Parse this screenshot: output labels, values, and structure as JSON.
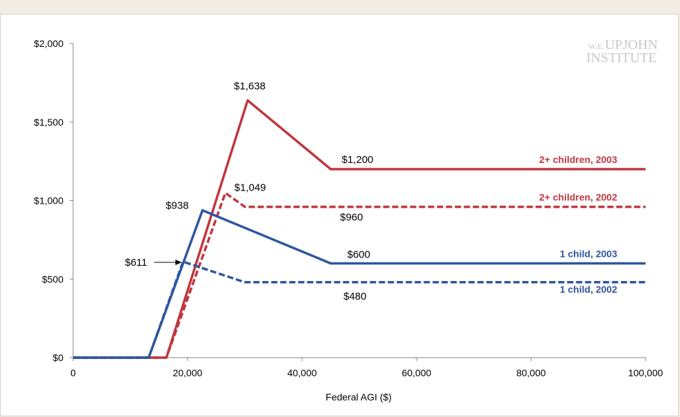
{
  "watermark": {
    "prefix": "W.E.",
    "line1": "UPJOHN",
    "line2": "INSTITUTE"
  },
  "chart_data": {
    "type": "line",
    "xlabel": "Federal AGI ($)",
    "ylabel": "",
    "xlim": [
      0,
      100000
    ],
    "ylim": [
      0,
      2000
    ],
    "x_ticks": [
      0,
      20000,
      40000,
      60000,
      80000,
      100000
    ],
    "x_tick_labels": [
      "0",
      "20,000",
      "40,000",
      "60,000",
      "80,000",
      "100,000"
    ],
    "y_ticks": [
      0,
      500,
      1000,
      1500,
      2000
    ],
    "y_tick_labels": [
      "$0",
      "$500",
      "$1,000",
      "$1,500",
      "$2,000"
    ],
    "series": [
      {
        "name": "2+ children, 2003",
        "color": "#c0373f",
        "dash": false,
        "points": [
          [
            0,
            0
          ],
          [
            16300,
            0
          ],
          [
            30500,
            1638
          ],
          [
            45000,
            1200
          ],
          [
            100000,
            1200
          ]
        ]
      },
      {
        "name": "2+ children, 2002",
        "color": "#c0373f",
        "dash": true,
        "points": [
          [
            0,
            0
          ],
          [
            16300,
            0
          ],
          [
            26600,
            1049
          ],
          [
            30000,
            960
          ],
          [
            100000,
            960
          ]
        ]
      },
      {
        "name": "1 child, 2003",
        "color": "#2f56a0",
        "dash": false,
        "points": [
          [
            0,
            0
          ],
          [
            13200,
            0
          ],
          [
            22600,
            938
          ],
          [
            45000,
            600
          ],
          [
            100000,
            600
          ]
        ]
      },
      {
        "name": "1 child, 2002",
        "color": "#2f56a0",
        "dash": true,
        "points": [
          [
            0,
            0
          ],
          [
            13200,
            0
          ],
          [
            19200,
            611
          ],
          [
            30000,
            480
          ],
          [
            100000,
            480
          ]
        ]
      }
    ],
    "annotations": [
      {
        "text": "$1,638",
        "x": 30500,
        "y": 1638
      },
      {
        "text": "$1,200",
        "x": 45000,
        "y": 1200
      },
      {
        "text": "$1,049",
        "x": 26600,
        "y": 1049
      },
      {
        "text": "$960",
        "x": 30000,
        "y": 960
      },
      {
        "text": "$938",
        "x": 22600,
        "y": 938
      },
      {
        "text": "$600",
        "x": 45000,
        "y": 600
      },
      {
        "text": "$611",
        "x": 19200,
        "y": 611
      },
      {
        "text": "$480",
        "x": 30000,
        "y": 480
      }
    ]
  }
}
